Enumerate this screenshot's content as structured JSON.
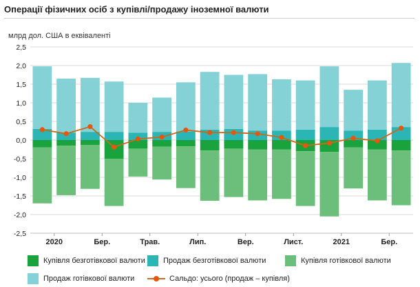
{
  "title": "Операції фізичних осіб з купівлі/продажу іноземної валюти",
  "chart_data": {
    "type": "bar",
    "ylabel": "млрд дол. США в еквіваленті",
    "ylim": [
      -2.5,
      2.5
    ],
    "yticks": [
      "2,5",
      "2,0",
      "1,5",
      "1,0",
      "0,5",
      "0,0",
      "-0,5",
      "-1,0",
      "-1,5",
      "-2,0",
      "-2,5"
    ],
    "grid": true,
    "legend_position": "bottom",
    "x_labels": [
      {
        "index": 1,
        "label": "2020"
      },
      {
        "index": 3,
        "label": "Бер."
      },
      {
        "index": 5,
        "label": "Трав."
      },
      {
        "index": 7,
        "label": "Лип."
      },
      {
        "index": 9,
        "label": "Вер."
      },
      {
        "index": 11,
        "label": "Лист."
      },
      {
        "index": 13,
        "label": "2021"
      },
      {
        "index": 15,
        "label": "Бер."
      }
    ],
    "series": [
      {
        "name": "Купівля безготівкової валюти",
        "color": "#1aa33c",
        "values": [
          -0.2,
          -0.15,
          -0.13,
          -0.5,
          -0.23,
          -0.18,
          -0.17,
          -0.28,
          -0.23,
          -0.25,
          -0.25,
          -0.3,
          -0.32,
          -0.2,
          -0.25,
          -0.28
        ]
      },
      {
        "name": "Продаж безготівкової валюти",
        "color": "#2bb6b5",
        "values": [
          0.3,
          0.2,
          0.22,
          0.22,
          0.2,
          0.22,
          0.23,
          0.28,
          0.3,
          0.25,
          0.25,
          0.28,
          0.35,
          0.25,
          0.28,
          0.35
        ]
      },
      {
        "name": "Купівля готівкової валюти",
        "color": "#6cbf7b",
        "values": [
          -1.5,
          -1.33,
          -1.18,
          -1.27,
          -0.75,
          -0.88,
          -1.12,
          -1.35,
          -1.3,
          -1.37,
          -1.33,
          -1.47,
          -1.73,
          -1.1,
          -1.37,
          -1.47
        ]
      },
      {
        "name": "Продаж готівкової валюти",
        "color": "#84d2d6",
        "values": [
          1.68,
          1.45,
          1.45,
          1.35,
          0.8,
          0.92,
          1.32,
          1.55,
          1.45,
          1.52,
          1.38,
          1.32,
          1.63,
          1.1,
          1.32,
          1.72
        ]
      },
      {
        "name": "Сальдо: усього (продаж – купівля)",
        "color": "#e6570e",
        "type": "line",
        "values": [
          0.28,
          0.17,
          0.36,
          -0.19,
          0.03,
          0.08,
          0.27,
          0.2,
          0.2,
          0.17,
          0.07,
          -0.15,
          -0.08,
          0.05,
          -0.02,
          0.32
        ]
      }
    ]
  }
}
